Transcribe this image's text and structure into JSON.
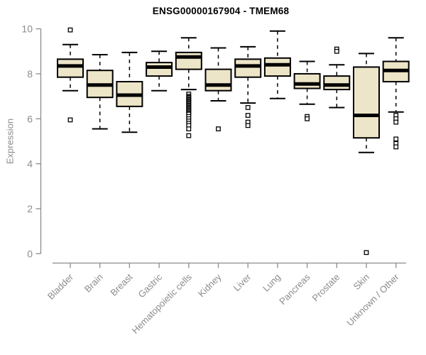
{
  "chart_data": {
    "type": "boxplot",
    "title": "ENSG00000167904 - TMEM68",
    "ylabel": "Expression",
    "xlabel": "",
    "ylim": [
      0,
      10
    ],
    "y_ticks": [
      0,
      2,
      4,
      6,
      8,
      10
    ],
    "grid": false,
    "legend_position": "none",
    "categories": [
      "Bladder",
      "Brain",
      "Breast",
      "Gastric",
      "Hematopoietic cells",
      "Kidney",
      "Liver",
      "Lung",
      "Pancreas",
      "Prostate",
      "Skin",
      "Unknown / Other"
    ],
    "series": [
      {
        "name": "Bladder",
        "whisker_low": 7.25,
        "q1": 7.85,
        "median": 8.35,
        "q3": 8.65,
        "whisker_high": 9.3,
        "outliers": [
          9.95,
          5.95
        ]
      },
      {
        "name": "Brain",
        "whisker_low": 5.55,
        "q1": 6.95,
        "median": 7.5,
        "q3": 8.15,
        "whisker_high": 8.85,
        "outliers": []
      },
      {
        "name": "Breast",
        "whisker_low": 5.4,
        "q1": 6.55,
        "median": 7.05,
        "q3": 7.65,
        "whisker_high": 8.95,
        "outliers": []
      },
      {
        "name": "Gastric",
        "whisker_low": 7.25,
        "q1": 7.9,
        "median": 8.3,
        "q3": 8.5,
        "whisker_high": 9.0,
        "outliers": []
      },
      {
        "name": "Hematopoietic cells",
        "whisker_low": 7.3,
        "q1": 8.2,
        "median": 8.75,
        "q3": 8.95,
        "whisker_high": 9.6,
        "outliers": [
          7.1,
          7.0,
          6.95,
          6.9,
          6.85,
          6.8,
          6.75,
          6.7,
          6.65,
          6.6,
          6.55,
          6.5,
          6.45,
          6.4,
          6.35,
          6.3,
          6.25,
          6.2,
          6.1,
          6.0,
          5.9,
          5.8,
          5.7,
          5.55,
          5.25
        ]
      },
      {
        "name": "Kidney",
        "whisker_low": 6.8,
        "q1": 7.25,
        "median": 7.5,
        "q3": 8.2,
        "whisker_high": 9.15,
        "outliers": [
          5.55
        ]
      },
      {
        "name": "Liver",
        "whisker_low": 6.7,
        "q1": 7.85,
        "median": 8.35,
        "q3": 8.65,
        "whisker_high": 9.2,
        "outliers": [
          6.5,
          6.15,
          5.85,
          5.7
        ]
      },
      {
        "name": "Lung",
        "whisker_low": 6.9,
        "q1": 7.9,
        "median": 8.4,
        "q3": 8.7,
        "whisker_high": 9.9,
        "outliers": []
      },
      {
        "name": "Pancreas",
        "whisker_low": 6.65,
        "q1": 7.35,
        "median": 7.55,
        "q3": 8.0,
        "whisker_high": 8.55,
        "outliers": [
          6.1,
          6.0
        ]
      },
      {
        "name": "Prostate",
        "whisker_low": 6.5,
        "q1": 7.3,
        "median": 7.5,
        "q3": 7.9,
        "whisker_high": 8.4,
        "outliers": [
          9.1,
          9.0
        ]
      },
      {
        "name": "Skin",
        "whisker_low": 4.5,
        "q1": 5.15,
        "median": 6.15,
        "q3": 8.3,
        "whisker_high": 8.9,
        "outliers": [
          0.05
        ]
      },
      {
        "name": "Unknown / Other",
        "whisker_low": 6.3,
        "q1": 7.65,
        "median": 8.15,
        "q3": 8.55,
        "whisker_high": 9.6,
        "outliers": [
          6.15,
          6.0,
          5.85,
          5.1,
          4.9,
          4.75
        ]
      }
    ],
    "colors": {
      "box_fill": "#EDE5C7",
      "box_stroke": "#000000",
      "median_stroke": "#000000",
      "whisker_stroke": "#000000",
      "outlier_stroke": "#000000",
      "axis": "#8C8C8C",
      "tick_text": "#8C8C8C",
      "title_text": "#000000",
      "background": "#FFFFFF"
    }
  }
}
